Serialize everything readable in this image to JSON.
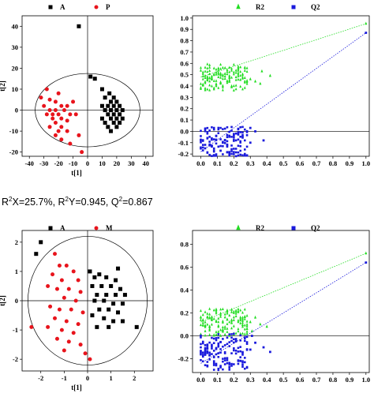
{
  "stats_line": {
    "r2x_label": "R",
    "r2x_sup": "2",
    "r2x_value": "X=25.7%, ",
    "r2y_label": "R",
    "r2y_sup": "2",
    "r2y_value": "Y=0.945, ",
    "q2_label": "Q",
    "q2_sup": "2",
    "q2_value": "=0.867"
  },
  "chart_data": [
    {
      "type": "scatter",
      "title": "",
      "xlabel": "t[1]",
      "ylabel": "t[2]",
      "xlim": [
        -45,
        45
      ],
      "ylim": [
        -22,
        45
      ],
      "xticks": [
        "-40",
        "-30",
        "-20",
        "-10",
        "0",
        "10",
        "20",
        "30",
        "40"
      ],
      "yticks": [
        "40",
        "30",
        "20",
        "10",
        "0",
        "-10",
        "-20"
      ],
      "xtick_values": [
        -40,
        -30,
        -20,
        -10,
        0,
        10,
        20,
        30,
        40
      ],
      "ytick_values": [
        40,
        30,
        20,
        10,
        0,
        -10,
        -20
      ],
      "ellipse": {
        "cx": 0,
        "cy": 0,
        "rx": 36,
        "ry": 17.5
      },
      "series": [
        {
          "name": "A",
          "color": "#000000",
          "marker": "square",
          "points": [
            [
              -6,
              40
            ],
            [
              2,
              16
            ],
            [
              5,
              15
            ],
            [
              10,
              10
            ],
            [
              15,
              8
            ],
            [
              12,
              6
            ],
            [
              18,
              6
            ],
            [
              16,
              4
            ],
            [
              20,
              4
            ],
            [
              14,
              2
            ],
            [
              18,
              2
            ],
            [
              22,
              2
            ],
            [
              12,
              0
            ],
            [
              16,
              0
            ],
            [
              20,
              0
            ],
            [
              14,
              -2
            ],
            [
              18,
              -2
            ],
            [
              22,
              -2
            ],
            [
              10,
              -4
            ],
            [
              16,
              -4
            ],
            [
              20,
              -4
            ],
            [
              24,
              -4
            ],
            [
              12,
              -6
            ],
            [
              18,
              -6
            ],
            [
              22,
              -6
            ],
            [
              14,
              -8
            ],
            [
              20,
              -8
            ],
            [
              10,
              2
            ],
            [
              24,
              0
            ],
            [
              16,
              -10
            ]
          ]
        },
        {
          "name": "P",
          "color": "#e8141c",
          "marker": "circle",
          "points": [
            [
              -28,
              10
            ],
            [
              -20,
              8
            ],
            [
              -32,
              6
            ],
            [
              -26,
              5
            ],
            [
              -22,
              4
            ],
            [
              -30,
              2
            ],
            [
              -18,
              2
            ],
            [
              -14,
              2
            ],
            [
              -26,
              0
            ],
            [
              -22,
              0
            ],
            [
              -16,
              0
            ],
            [
              -28,
              -2
            ],
            [
              -20,
              -2
            ],
            [
              -12,
              -2
            ],
            [
              -24,
              -4
            ],
            [
              -18,
              -4
            ],
            [
              -14,
              -5
            ],
            [
              -22,
              -6
            ],
            [
              -26,
              -8
            ],
            [
              -18,
              -8
            ],
            [
              -20,
              -10
            ],
            [
              -14,
              -10
            ],
            [
              -22,
              -12
            ],
            [
              -18,
              -14
            ],
            [
              -8,
              -2
            ],
            [
              -10,
              4
            ],
            [
              -6,
              -12
            ],
            [
              -12,
              -16
            ],
            [
              -4,
              -20
            ],
            [
              -24,
              -2
            ]
          ]
        }
      ]
    },
    {
      "type": "scatter",
      "title": "",
      "xlabel": "",
      "ylabel": "",
      "xlim": [
        -0.05,
        1.02
      ],
      "ylim": [
        -0.22,
        1.02
      ],
      "xticks": [
        "0.0",
        "0.1",
        "0.2",
        "0.3",
        "0.4",
        "0.5",
        "0.6",
        "0.7",
        "0.8",
        "0.9",
        "1.0"
      ],
      "yticks": [
        "1.0",
        "0.9",
        "0.8",
        "0.7",
        "0.6",
        "0.5",
        "0.4",
        "0.3",
        "0.2",
        "0.1",
        "0.0",
        "-0.1",
        "-0.2"
      ],
      "xtick_values": [
        0,
        0.1,
        0.2,
        0.3,
        0.4,
        0.5,
        0.6,
        0.7,
        0.8,
        0.9,
        1.0
      ],
      "ytick_values": [
        1.0,
        0.9,
        0.8,
        0.7,
        0.6,
        0.5,
        0.4,
        0.3,
        0.2,
        0.1,
        0.0,
        -0.1,
        -0.2
      ],
      "series": [
        {
          "name": "R2",
          "color": "#22dd22",
          "marker": "triangle",
          "cloud": {
            "x_min": 0.0,
            "x_max": 0.28,
            "y_min": 0.36,
            "y_max": 0.6
          },
          "extra_points": [
            [
              0.3,
              0.46
            ],
            [
              0.33,
              0.44
            ],
            [
              0.36,
              0.42
            ],
            [
              0.42,
              0.49
            ],
            [
              0.37,
              0.53
            ],
            [
              1.0,
              0.95
            ]
          ],
          "regression": [
            [
              0.0,
              0.48
            ],
            [
              1.0,
              0.95
            ]
          ]
        },
        {
          "name": "Q2",
          "color": "#1a1adc",
          "marker": "square",
          "cloud": {
            "x_min": 0.0,
            "x_max": 0.28,
            "y_min": -0.22,
            "y_max": 0.04
          },
          "extra_points": [
            [
              0.3,
              -0.1
            ],
            [
              0.33,
              0.0
            ],
            [
              0.38,
              -0.08
            ],
            [
              0.3,
              0.03
            ],
            [
              1.0,
              0.87
            ]
          ],
          "regression": [
            [
              0.0,
              -0.18
            ],
            [
              1.0,
              0.87
            ]
          ]
        }
      ]
    },
    {
      "type": "scatter",
      "title": "",
      "xlabel": "t[1]",
      "ylabel": "t[2]",
      "xlim": [
        -2.8,
        2.8
      ],
      "ylim": [
        -2.4,
        2.4
      ],
      "xticks": [
        "-2",
        "-1",
        "0",
        "1",
        "2"
      ],
      "yticks": [
        "2",
        "1",
        "0",
        "-1",
        "-2"
      ],
      "xtick_values": [
        -2,
        -1,
        0,
        1,
        2
      ],
      "ytick_values": [
        2,
        1,
        0,
        -1,
        -2
      ],
      "ellipse": {
        "cx": 0,
        "cy": 0,
        "rx": 2.55,
        "ry": 2.2
      },
      "series": [
        {
          "name": "A",
          "color": "#000000",
          "marker": "square",
          "points": [
            [
              -2.0,
              2.0
            ],
            [
              -2.2,
              1.6
            ],
            [
              0.1,
              1.0
            ],
            [
              0.3,
              0.8
            ],
            [
              0.5,
              0.9
            ],
            [
              0.8,
              0.8
            ],
            [
              1.2,
              0.7
            ],
            [
              0.2,
              0.5
            ],
            [
              0.6,
              0.5
            ],
            [
              1.0,
              0.5
            ],
            [
              1.4,
              0.4
            ],
            [
              0.4,
              0.2
            ],
            [
              0.8,
              0.2
            ],
            [
              1.2,
              0.2
            ],
            [
              1.6,
              0.2
            ],
            [
              0.3,
              0.0
            ],
            [
              0.7,
              0.0
            ],
            [
              1.1,
              -0.1
            ],
            [
              1.5,
              -0.1
            ],
            [
              0.5,
              -0.3
            ],
            [
              0.9,
              -0.3
            ],
            [
              1.3,
              -0.4
            ],
            [
              0.2,
              -0.5
            ],
            [
              0.7,
              -0.6
            ],
            [
              1.1,
              -0.7
            ],
            [
              1.5,
              -0.7
            ],
            [
              2.1,
              -0.9
            ],
            [
              0.4,
              -0.9
            ],
            [
              0.9,
              -0.9
            ],
            [
              1.3,
              1.1
            ]
          ]
        },
        {
          "name": "M",
          "color": "#e8141c",
          "marker": "circle",
          "points": [
            [
              -1.4,
              1.6
            ],
            [
              -1.2,
              1.2
            ],
            [
              -0.9,
              1.2
            ],
            [
              -0.6,
              1.0
            ],
            [
              -1.5,
              0.9
            ],
            [
              -1.1,
              0.7
            ],
            [
              -0.4,
              0.7
            ],
            [
              -1.7,
              0.5
            ],
            [
              -1.3,
              0.4
            ],
            [
              -0.8,
              0.4
            ],
            [
              -0.3,
              0.3
            ],
            [
              -1.0,
              0.1
            ],
            [
              -0.5,
              0.0
            ],
            [
              -1.6,
              -0.2
            ],
            [
              -1.2,
              -0.3
            ],
            [
              -0.7,
              -0.3
            ],
            [
              -0.2,
              -0.4
            ],
            [
              -1.4,
              -0.6
            ],
            [
              -0.9,
              -0.7
            ],
            [
              -0.4,
              -0.8
            ],
            [
              -1.7,
              -0.9
            ],
            [
              -1.1,
              -1.0
            ],
            [
              -0.6,
              -1.1
            ],
            [
              -1.3,
              -1.3
            ],
            [
              -0.8,
              -1.4
            ],
            [
              -0.3,
              -1.5
            ],
            [
              -2.4,
              -0.9
            ],
            [
              -0.1,
              -1.8
            ],
            [
              -1.0,
              -1.7
            ],
            [
              0.1,
              -2.0
            ]
          ]
        }
      ]
    },
    {
      "type": "scatter",
      "title": "",
      "xlabel": "",
      "ylabel": "",
      "xlim": [
        -0.05,
        1.02
      ],
      "ylim": [
        -0.32,
        0.92
      ],
      "xticks": [
        "0.0",
        "0.1",
        "0.2",
        "0.3",
        "0.4",
        "0.5",
        "0.6",
        "0.7",
        "0.8",
        "0.9",
        "1.0"
      ],
      "yticks": [
        "0.8",
        "0.6",
        "0.4",
        "0.2",
        "0.0",
        "-0.2"
      ],
      "xtick_values": [
        0,
        0.1,
        0.2,
        0.3,
        0.4,
        0.5,
        0.6,
        0.7,
        0.8,
        0.9,
        1.0
      ],
      "ytick_values": [
        0.8,
        0.6,
        0.4,
        0.2,
        0.0,
        -0.2
      ],
      "series": [
        {
          "name": "R2",
          "color": "#22dd22",
          "marker": "triangle",
          "cloud": {
            "x_min": 0.0,
            "x_max": 0.28,
            "y_min": 0.0,
            "y_max": 0.24
          },
          "extra_points": [
            [
              0.3,
              0.12
            ],
            [
              0.33,
              0.16
            ],
            [
              0.36,
              0.1
            ],
            [
              0.4,
              0.08
            ],
            [
              0.31,
              0.04
            ],
            [
              1.0,
              0.72
            ]
          ],
          "regression": [
            [
              0.0,
              0.12
            ],
            [
              1.0,
              0.72
            ]
          ]
        },
        {
          "name": "Q2",
          "color": "#1a1adc",
          "marker": "square",
          "cloud": {
            "x_min": 0.0,
            "x_max": 0.28,
            "y_min": -0.3,
            "y_max": 0.02
          },
          "extra_points": [
            [
              0.3,
              -0.12
            ],
            [
              0.33,
              -0.06
            ],
            [
              0.38,
              -0.1
            ],
            [
              0.42,
              -0.14
            ],
            [
              0.31,
              0.0
            ],
            [
              1.0,
              0.64
            ]
          ],
          "regression": [
            [
              0.0,
              -0.24
            ],
            [
              1.0,
              0.64
            ]
          ]
        }
      ]
    }
  ]
}
